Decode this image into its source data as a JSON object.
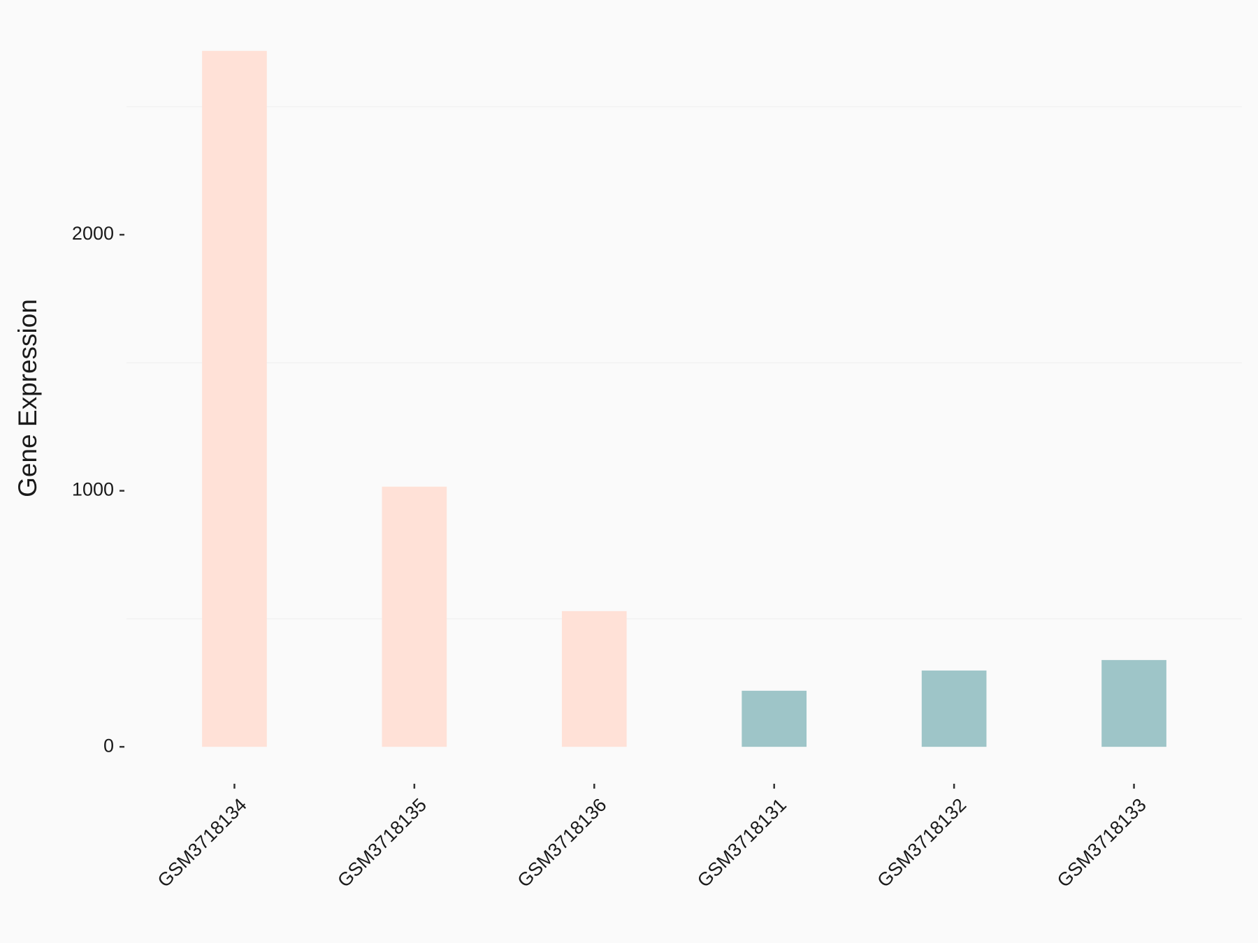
{
  "chart_data": {
    "type": "bar",
    "y_label": "Gene Expression",
    "categories": [
      "GSM3718134",
      "GSM3718135",
      "GSM3718136",
      "GSM3718131",
      "GSM3718132",
      "GSM3718133"
    ],
    "values": [
      2718,
      1016,
      530,
      219,
      298,
      339
    ],
    "colors": [
      "#FFE1D7",
      "#FFE1D7",
      "#FFE1D7",
      "#9EC5C8",
      "#9EC5C8",
      "#9EC5C8"
    ],
    "ylim": [
      -136,
      2854
    ],
    "yticks": [
      0,
      1000,
      2000
    ],
    "minor_yticks": [
      500,
      1500,
      2500
    ],
    "grid": true
  }
}
